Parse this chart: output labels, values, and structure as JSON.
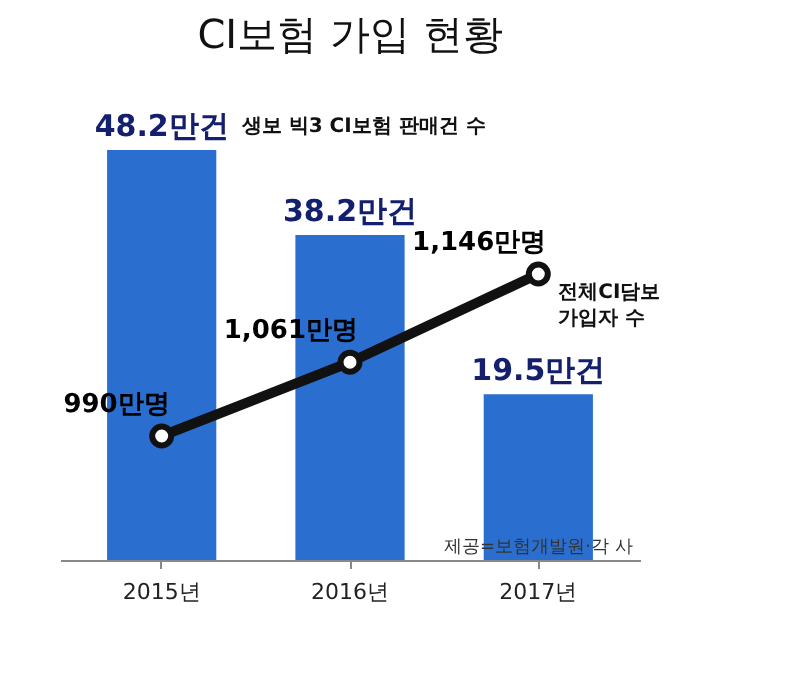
{
  "chart_data": {
    "type": "bar",
    "title": "CI보험 가입 현황",
    "categories": [
      "2015년",
      "2016년",
      "2017년"
    ],
    "series": [
      {
        "name": "생보 빅3 CI보험 판매건 수",
        "color": "#2a6fd0",
        "values": [
          48.2,
          38.2,
          19.5
        ],
        "value_labels": [
          "48.2만건",
          "38.2만건",
          "19.5만건"
        ]
      },
      {
        "type": "line",
        "axis": "y2",
        "name": "전체CI담보 가입자 수",
        "color": "#111111",
        "values": [
          990,
          1061,
          1146
        ],
        "value_labels": [
          "990만명",
          "1,061만명",
          "1,146만명"
        ]
      }
    ],
    "tick_labels": "x",
    "grid": false,
    "legend": false,
    "marker": "circle",
    "line_style": "solid",
    "annotations": [
      "제공=보험개발원·각 사"
    ]
  }
}
